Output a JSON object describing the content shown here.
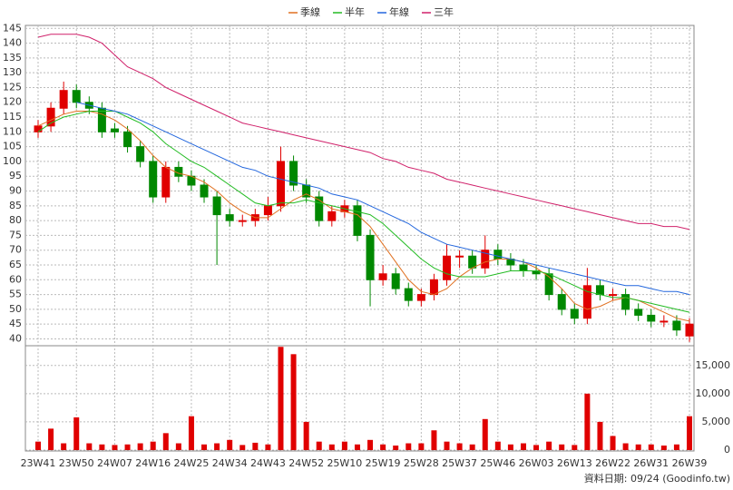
{
  "chart_data": {
    "type": "candlestick",
    "categories": [
      "23W41",
      null,
      null,
      "23W50",
      null,
      null,
      "24W07",
      null,
      null,
      "24W16",
      null,
      null,
      "24W25",
      null,
      null,
      "24W34",
      null,
      null,
      "24W43",
      null,
      null,
      "24W52",
      null,
      null,
      "25W10",
      null,
      null,
      "25W19",
      null,
      null,
      "25W28",
      null,
      null,
      "25W37",
      null,
      null,
      "25W46",
      null,
      null,
      "26W03",
      null,
      null,
      "26W13",
      null,
      null,
      "26W22",
      null,
      null,
      "26W31",
      null,
      null,
      "26W39"
    ],
    "candles": {
      "open": [
        110,
        112,
        118,
        124,
        120,
        118,
        111,
        110,
        105,
        100,
        88,
        98,
        95,
        92,
        88,
        82,
        80,
        80,
        82,
        85,
        100,
        92,
        88,
        80,
        83,
        85,
        75,
        60,
        62,
        57,
        53,
        55,
        60,
        68,
        68,
        64,
        70,
        67,
        65,
        63,
        62,
        55,
        50,
        47,
        58,
        55,
        55,
        50,
        48,
        46,
        46,
        41
      ],
      "high": [
        114,
        120,
        127,
        126,
        122,
        120,
        113,
        112,
        107,
        102,
        100,
        100,
        97,
        94,
        90,
        84,
        82,
        84,
        88,
        105,
        102,
        94,
        90,
        85,
        87,
        87,
        77,
        65,
        64,
        59,
        57,
        62,
        72,
        70,
        70,
        75,
        72,
        69,
        67,
        65,
        64,
        57,
        52,
        64,
        60,
        57,
        57,
        52,
        50,
        48,
        48,
        47
      ],
      "low": [
        108,
        110,
        116,
        118,
        116,
        108,
        108,
        103,
        98,
        86,
        86,
        93,
        90,
        86,
        65,
        78,
        78,
        78,
        80,
        83,
        90,
        86,
        78,
        78,
        81,
        73,
        51,
        58,
        55,
        51,
        51,
        53,
        58,
        64,
        62,
        62,
        65,
        63,
        61,
        60,
        53,
        48,
        45,
        45,
        53,
        53,
        48,
        46,
        44,
        44,
        41,
        39
      ],
      "close": [
        112,
        118,
        124,
        120,
        118,
        110,
        110,
        105,
        100,
        88,
        98,
        95,
        92,
        88,
        82,
        80,
        80,
        82,
        85,
        100,
        92,
        88,
        80,
        83,
        85,
        75,
        60,
        62,
        57,
        53,
        55,
        60,
        68,
        68,
        64,
        70,
        67,
        65,
        63,
        62,
        55,
        50,
        47,
        58,
        55,
        55,
        50,
        48,
        46,
        46,
        43,
        45
      ],
      "up_color": "#e00000",
      "down_color": "#008800"
    },
    "series": [
      {
        "name": "季線",
        "color": "#e07020",
        "values": [
          112,
          114,
          116,
          117,
          117,
          116,
          114,
          111,
          107,
          102,
          98,
          96,
          95,
          93,
          90,
          86,
          83,
          81,
          81,
          84,
          87,
          89,
          87,
          84,
          83,
          82,
          78,
          72,
          66,
          60,
          56,
          55,
          57,
          61,
          64,
          66,
          67,
          67,
          66,
          64,
          61,
          57,
          52,
          50,
          51,
          53,
          54,
          53,
          51,
          49,
          47,
          46
        ]
      },
      {
        "name": "半年",
        "color": "#22bb22",
        "values": [
          110,
          113,
          115,
          116,
          117,
          117,
          117,
          115,
          113,
          110,
          106,
          103,
          100,
          98,
          95,
          92,
          89,
          86,
          85,
          86,
          86,
          87,
          86,
          85,
          84,
          83,
          82,
          79,
          75,
          71,
          67,
          64,
          62,
          61,
          61,
          61,
          62,
          63,
          63,
          63,
          62,
          60,
          58,
          56,
          55,
          54,
          54,
          53,
          52,
          51,
          50,
          49
        ]
      },
      {
        "name": "年線",
        "color": "#2266dd",
        "values": [
          null,
          null,
          null,
          120,
          119,
          118,
          117,
          116,
          114,
          112,
          110,
          108,
          106,
          104,
          102,
          100,
          98,
          97,
          95,
          94,
          93,
          92,
          91,
          89,
          88,
          87,
          85,
          83,
          81,
          79,
          76,
          74,
          72,
          71,
          70,
          69,
          68,
          67,
          66,
          65,
          64,
          63,
          62,
          61,
          60,
          59,
          58,
          58,
          57,
          56,
          56,
          55
        ]
      },
      {
        "name": "三年",
        "color": "#d0206a",
        "values": [
          142,
          143,
          143,
          143,
          142,
          140,
          136,
          132,
          130,
          128,
          125,
          123,
          121,
          119,
          117,
          115,
          113,
          112,
          111,
          110,
          109,
          108,
          107,
          106,
          105,
          104,
          103,
          101,
          100,
          98,
          97,
          96,
          94,
          93,
          92,
          91,
          90,
          89,
          88,
          87,
          86,
          85,
          84,
          83,
          82,
          81,
          80,
          79,
          79,
          78,
          78,
          77
        ]
      }
    ],
    "volume": {
      "color": "#e00000",
      "values": [
        1500,
        3800,
        1200,
        5800,
        1200,
        1000,
        900,
        1000,
        1200,
        1500,
        3000,
        1200,
        6000,
        1000,
        1200,
        1800,
        900,
        1300,
        1000,
        18300,
        17000,
        5000,
        1500,
        1000,
        1500,
        1000,
        1800,
        1000,
        800,
        1200,
        1200,
        3500,
        1500,
        1200,
        1000,
        5500,
        1500,
        1000,
        1200,
        900,
        1500,
        1000,
        900,
        10000,
        5000,
        2500,
        1200,
        1000,
        1000,
        800,
        1000,
        6000
      ]
    },
    "ylim": [
      38,
      146
    ],
    "yticks": [
      40,
      45,
      50,
      55,
      60,
      65,
      70,
      75,
      80,
      85,
      90,
      95,
      100,
      105,
      110,
      115,
      120,
      125,
      130,
      135,
      140,
      145
    ],
    "y2lim": [
      0,
      18500
    ],
    "y2ticks": [
      0,
      {
        "value": 5000,
        "label": "5,000"
      },
      {
        "value": 10000,
        "label": "10,000"
      },
      {
        "value": 15000,
        "label": "15,000"
      }
    ],
    "grid": true,
    "footer": "資料日期: 09/24  (Goodinfo.tw)"
  }
}
